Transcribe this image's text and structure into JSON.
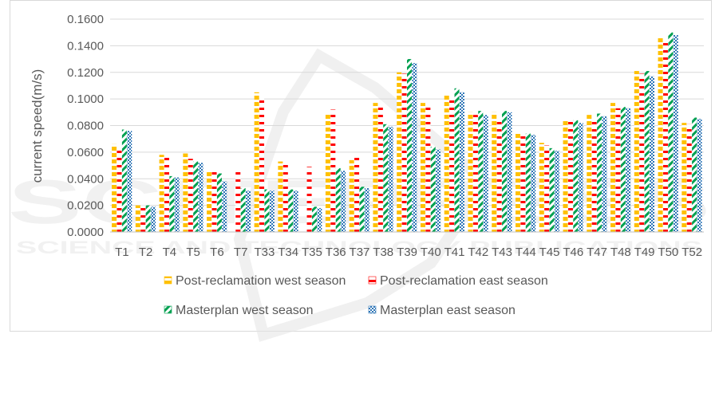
{
  "chart_data": {
    "type": "bar",
    "title": "",
    "xlabel": "",
    "ylabel": "current speed(m/s)",
    "ylim": [
      0,
      0.16
    ],
    "yticks": [
      "0.0000",
      "0.0200",
      "0.0400",
      "0.0600",
      "0.0800",
      "0.1000",
      "0.1200",
      "0.1400",
      "0.1600"
    ],
    "grid": "horizontal",
    "legend_position": "bottom",
    "categories": [
      "T1",
      "T2",
      "T4",
      "T5",
      "T6",
      "T7",
      "T33",
      "T34",
      "T35",
      "T36",
      "T37",
      "T38",
      "T39",
      "T40",
      "T41",
      "T42",
      "T43",
      "T44",
      "T45",
      "T46",
      "T47",
      "T48",
      "T49",
      "T50",
      "T52"
    ],
    "series": [
      {
        "name": "Post-reclamation west season",
        "color": "#ffc000",
        "pattern": "dots",
        "values": [
          0.066,
          0.02,
          0.058,
          0.059,
          0.045,
          0.0,
          0.105,
          0.053,
          0.0,
          0.089,
          0.054,
          0.097,
          0.12,
          0.097,
          0.104,
          0.09,
          0.09,
          0.074,
          0.067,
          0.085,
          0.088,
          0.097,
          0.121,
          0.147,
          0.082
        ]
      },
      {
        "name": "Post-reclamation east season",
        "color": "#ff0000",
        "pattern": "dashes",
        "values": [
          0.064,
          0.02,
          0.057,
          0.055,
          0.046,
          0.046,
          0.102,
          0.053,
          0.049,
          0.092,
          0.057,
          0.096,
          0.119,
          0.095,
          0.101,
          0.088,
          0.084,
          0.073,
          0.065,
          0.083,
          0.086,
          0.093,
          0.119,
          0.142,
          0.081
        ]
      },
      {
        "name": "Masterplan west season",
        "color": "#00a050",
        "pattern": "diagonal",
        "values": [
          0.077,
          0.02,
          0.042,
          0.053,
          0.044,
          0.033,
          0.032,
          0.032,
          0.019,
          0.048,
          0.034,
          0.081,
          0.13,
          0.064,
          0.108,
          0.091,
          0.091,
          0.074,
          0.063,
          0.084,
          0.089,
          0.094,
          0.121,
          0.15,
          0.086
        ]
      },
      {
        "name": "Masterplan east season",
        "color": "#2e75b6",
        "pattern": "checks",
        "values": [
          0.076,
          0.019,
          0.041,
          0.052,
          0.038,
          0.031,
          0.031,
          0.031,
          0.018,
          0.046,
          0.033,
          0.079,
          0.127,
          0.062,
          0.105,
          0.088,
          0.09,
          0.073,
          0.061,
          0.082,
          0.087,
          0.093,
          0.117,
          0.148,
          0.085
        ]
      }
    ]
  },
  "watermark": {
    "line1": "SCITEPRESS",
    "line2": "SCIENCE AND TECHNOLOGY PUBLICATIONS"
  }
}
